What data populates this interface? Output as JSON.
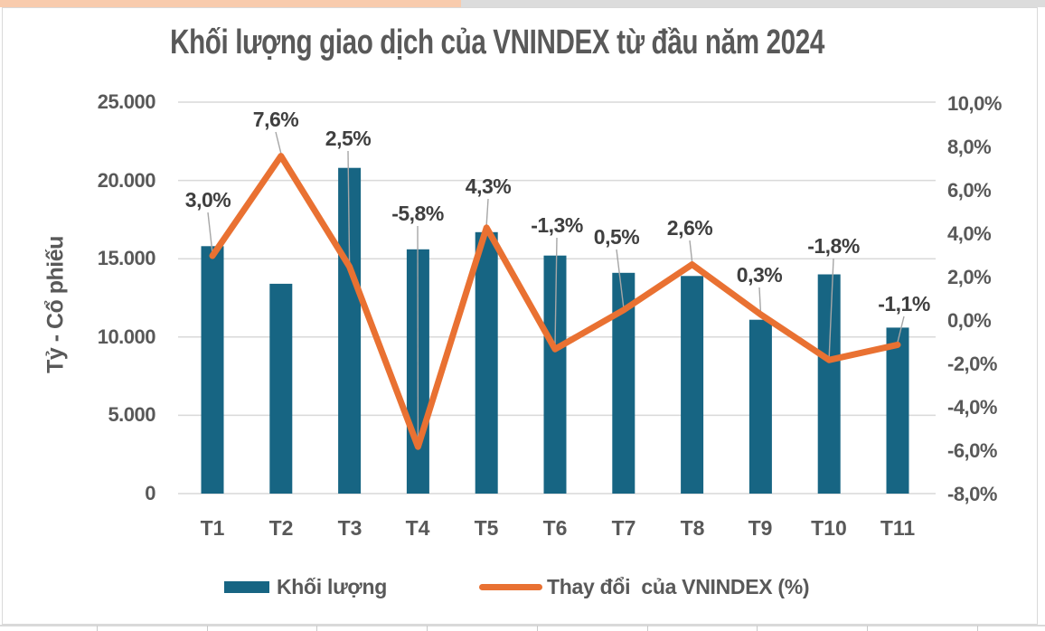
{
  "window": {
    "background": "#FFFFFF",
    "top_strip_left_color": "#F8CBAD",
    "top_strip_right_color": "#DCDCDC",
    "frame_border_color": "#D9D9D9"
  },
  "chart_data": {
    "type": "combo",
    "title": "Khối lượng giao dịch của VNINDEX từ đầu năm 2024",
    "categories": [
      "T1",
      "T2",
      "T3",
      "T4",
      "T5",
      "T6",
      "T7",
      "T8",
      "T9",
      "T10",
      "T11"
    ],
    "series": [
      {
        "name": "Khối lượng",
        "type": "bar",
        "axis": "left",
        "color": "#176583",
        "values": [
          15800,
          13400,
          20800,
          15600,
          16700,
          15200,
          14100,
          13900,
          11100,
          14000,
          10600
        ]
      },
      {
        "name": "Thay đổi  của VNINDEX (%)",
        "type": "line",
        "axis": "right",
        "color": "#E97132",
        "values": [
          3.0,
          7.6,
          2.5,
          -5.8,
          4.3,
          -1.3,
          0.5,
          2.6,
          0.3,
          -1.8,
          -1.1
        ],
        "data_labels": [
          "3,0%",
          "7,6%",
          "2,5%",
          "-5,8%",
          "4,3%",
          "-1,3%",
          "0,5%",
          "2,6%",
          "0,3%",
          "-1,8%",
          "-1,1%"
        ]
      }
    ],
    "left_axis": {
      "title": "Tỷ - Cổ phiếu",
      "min": 0,
      "max": 25000,
      "step": 5000,
      "tick_labels": [
        "25.000",
        "20.000",
        "15.000",
        "10.000",
        "5.000",
        "0"
      ]
    },
    "right_axis": {
      "min": -8,
      "max": 10,
      "step": 2,
      "tick_labels": [
        "10,0%",
        "8,0%",
        "6,0%",
        "4,0%",
        "2,0%",
        "0,0%",
        "-2,0%",
        "-4,0%",
        "-6,0%",
        "-8,0%"
      ]
    },
    "legend": {
      "position": "bottom"
    },
    "grid": true,
    "text_color": "#595959",
    "data_label_color": "#3F3F3F",
    "gridline_color": "#D9D9D9",
    "leader_line_color": "#A6A6A6"
  }
}
